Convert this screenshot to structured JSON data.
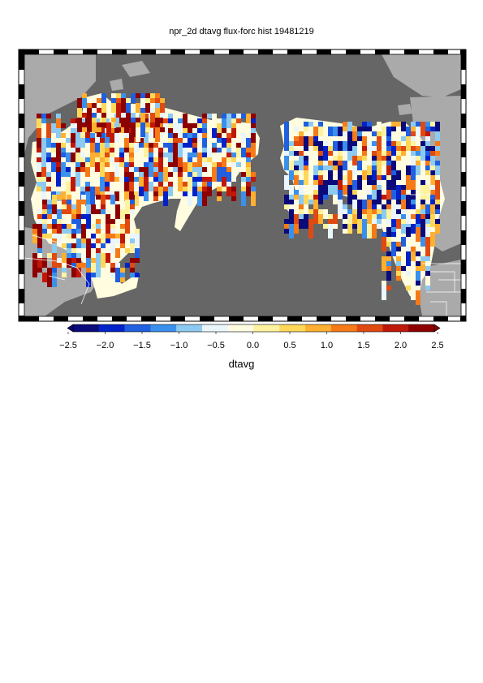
{
  "title": "npr_2d dtavg flux-forc hist 19481219",
  "colorbar": {
    "label": "dtavg",
    "min": -2.5,
    "max": 2.5,
    "ticks": [
      "-2.5",
      "-2.0",
      "-1.5",
      "-1.0",
      "-0.5",
      "0.0",
      "0.5",
      "1.0",
      "1.5",
      "2.0",
      "2.5"
    ],
    "colors": [
      "#0a0a7a",
      "#0022c8",
      "#1f5fe0",
      "#3a90ec",
      "#8ccaf2",
      "#eaf6fc",
      "#fffce0",
      "#fff3a0",
      "#ffd85a",
      "#ffb030",
      "#f57a18",
      "#e04a10",
      "#c01808",
      "#8c0000"
    ]
  },
  "colors": {
    "ocean": "#666666",
    "land": "#aaaaaa",
    "frame_dark": "#000000",
    "frame_light": "#ffffff",
    "borders": "#ffffff"
  }
}
